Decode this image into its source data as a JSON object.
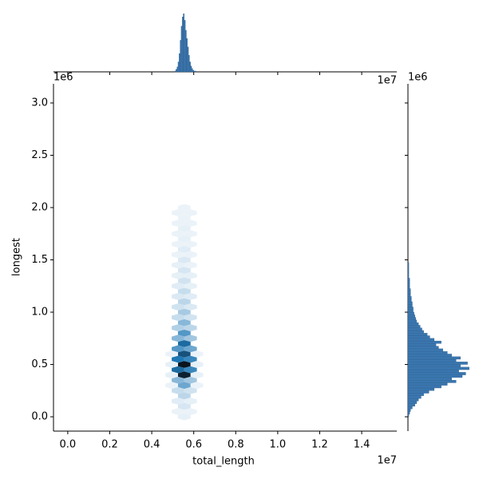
{
  "chart_data": [
    {
      "type": "hexbin",
      "xlabel": "total_length",
      "ylabel": "longest",
      "x_offset_label": "1e7",
      "y_offset_label": "1e6",
      "xlim": [
        -0.068,
        1.567
      ],
      "ylim": [
        -0.137,
        3.183
      ],
      "xticks": [
        {
          "value": 0,
          "label": "0.0"
        },
        {
          "value": 0.2,
          "label": "0.2"
        },
        {
          "value": 0.4,
          "label": "0.4"
        },
        {
          "value": 0.6,
          "label": "0.6"
        },
        {
          "value": 0.8,
          "label": "0.8"
        },
        {
          "value": 1,
          "label": "1.0"
        },
        {
          "value": 1.2,
          "label": "1.2"
        },
        {
          "value": 1.4,
          "label": "1.4"
        }
      ],
      "yticks": [
        {
          "value": 0,
          "label": "0.0"
        },
        {
          "value": 0.5,
          "label": "0.5"
        },
        {
          "value": 1,
          "label": "1.0"
        },
        {
          "value": 1.5,
          "label": "1.5"
        },
        {
          "value": 2,
          "label": "2.0"
        },
        {
          "value": 2.5,
          "label": "2.5"
        },
        {
          "value": 3,
          "label": "3.0"
        }
      ],
      "color": "#1f77b4",
      "cells": {
        "x": [
          0.555,
          0.555,
          0.555,
          0.555,
          0.555,
          0.555,
          0.555,
          0.555,
          0.555,
          0.555,
          0.555,
          0.555,
          0.555,
          0.555,
          0.555,
          0.555,
          0.555,
          0.555,
          0.555,
          0.555,
          0.555,
          0.525,
          0.525,
          0.525,
          0.525,
          0.525,
          0.525,
          0.525,
          0.525,
          0.525,
          0.525,
          0.525,
          0.525,
          0.525,
          0.525,
          0.525,
          0.525,
          0.525,
          0.525,
          0.525,
          0.525,
          0.585,
          0.585,
          0.585,
          0.585,
          0.585,
          0.585,
          0.585,
          0.585,
          0.585,
          0.585,
          0.585,
          0.585,
          0.585,
          0.585,
          0.585,
          0.585,
          0.585,
          0.585,
          0.585,
          0.585,
          0.495,
          0.495,
          0.495,
          0.495,
          0.615,
          0.615,
          0.615,
          0.615
        ],
        "y": [
          0,
          0.1,
          0.2,
          0.3,
          0.4,
          0.5,
          0.6,
          0.7,
          0.8,
          0.9,
          1,
          1.1,
          1.2,
          1.3,
          1.4,
          1.5,
          1.6,
          1.7,
          1.8,
          1.9,
          2,
          0.05,
          0.15,
          0.25,
          0.35,
          0.45,
          0.55,
          0.65,
          0.75,
          0.85,
          0.95,
          1.05,
          1.15,
          1.25,
          1.35,
          1.45,
          1.55,
          1.65,
          1.75,
          1.85,
          1.95,
          0.05,
          0.15,
          0.25,
          0.35,
          0.45,
          0.55,
          0.65,
          0.75,
          0.85,
          0.95,
          1.05,
          1.15,
          1.25,
          1.35,
          1.45,
          1.55,
          1.65,
          1.75,
          1.85,
          1.95,
          0.3,
          0.4,
          0.5,
          0.6,
          0.3,
          0.4,
          0.5,
          0.6
        ],
        "counts": [
          2,
          5,
          10,
          25,
          75,
          80,
          55,
          45,
          30,
          20,
          14,
          10,
          8,
          6,
          5,
          4,
          3,
          2,
          2,
          1,
          1,
          1,
          3,
          8,
          20,
          45,
          40,
          30,
          20,
          12,
          8,
          6,
          4,
          3,
          2,
          2,
          1,
          1,
          1,
          1,
          1,
          1,
          2,
          6,
          15,
          35,
          35,
          25,
          15,
          10,
          6,
          4,
          3,
          2,
          2,
          1,
          1,
          1,
          1,
          1,
          1,
          1,
          2,
          2,
          1,
          1,
          2,
          2,
          1
        ]
      }
    },
    {
      "type": "histogram",
      "orientation": "vertical",
      "x_offset_label": "1e7",
      "color": "#3a76af",
      "xlim": [
        -0.068,
        1.567
      ],
      "xticks": [
        0,
        0.2,
        0.4,
        0.6,
        0.8,
        1,
        1.2,
        1.4
      ],
      "ylim": [
        0,
        72
      ],
      "bins": [
        0.51,
        0.515,
        0.52,
        0.525,
        0.53,
        0.535,
        0.54,
        0.545,
        0.55,
        0.555,
        0.56,
        0.565,
        0.57,
        0.575,
        0.58,
        0.585,
        0.59,
        0.595,
        0.6,
        0.605,
        0.61
      ],
      "counts": [
        1,
        3,
        6,
        12,
        22,
        38,
        55,
        66,
        70,
        62,
        50,
        40,
        30,
        20,
        12,
        7,
        4,
        2,
        1,
        1
      ]
    },
    {
      "type": "histogram",
      "orientation": "horizontal",
      "y_offset_label": "1e6",
      "color": "#3a76af",
      "ylim": [
        -0.137,
        3.183
      ],
      "yticks": [
        0,
        0.5,
        1,
        1.5,
        2,
        2.5,
        3
      ],
      "xlim": [
        0,
        72
      ],
      "bins": [
        0,
        0.025,
        0.05,
        0.075,
        0.1,
        0.125,
        0.15,
        0.175,
        0.2,
        0.225,
        0.25,
        0.275,
        0.3,
        0.325,
        0.35,
        0.375,
        0.4,
        0.425,
        0.45,
        0.475,
        0.5,
        0.525,
        0.55,
        0.575,
        0.6,
        0.625,
        0.65,
        0.675,
        0.7,
        0.725,
        0.75,
        0.775,
        0.8,
        0.825,
        0.85,
        0.875,
        0.9,
        0.925,
        0.95,
        0.975,
        1,
        1.025,
        1.05,
        1.075,
        1.1,
        1.125,
        1.15,
        1.175,
        1.2,
        1.225,
        1.25,
        1.275,
        1.3,
        1.325,
        1.35,
        1.375,
        1.4,
        1.425,
        1.45,
        1.475,
        1.5
      ],
      "counts": [
        1,
        2,
        3,
        5,
        8,
        10,
        12,
        15,
        18,
        24,
        30,
        38,
        45,
        55,
        50,
        62,
        66,
        58,
        70,
        60,
        68,
        55,
        60,
        50,
        45,
        40,
        35,
        32,
        38,
        30,
        25,
        22,
        18,
        16,
        14,
        12,
        10,
        9,
        8,
        7,
        6,
        6,
        5,
        5,
        4,
        4,
        3,
        3,
        3,
        2,
        2,
        2,
        2,
        1,
        1,
        1,
        1,
        1,
        1,
        0
      ]
    }
  ]
}
